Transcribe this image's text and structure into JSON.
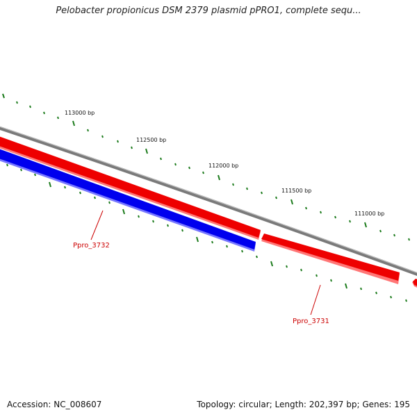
{
  "title": "Pelobacter propionicus DSM 2379 plasmid pPRO1, complete sequ...",
  "footer": {
    "accession": "Accession: NC_008607",
    "summary": "Topology: circular; Length: 202,397 bp; Genes: 195"
  },
  "ticks": [
    {
      "label": "113000 bp"
    },
    {
      "label": "112500 bp"
    },
    {
      "label": "112000 bp"
    },
    {
      "label": "111500 bp"
    },
    {
      "label": "111000 bp"
    }
  ],
  "genes": [
    {
      "name": "Ppro_3732"
    },
    {
      "name": "Ppro_3731"
    }
  ],
  "colors": {
    "backbone": "#7a7a7a",
    "forward_gene": "#ee0000",
    "reverse_gene": "#0000ee",
    "tick_marks": "#1a7a1a",
    "gene_label": "#cc0000"
  }
}
